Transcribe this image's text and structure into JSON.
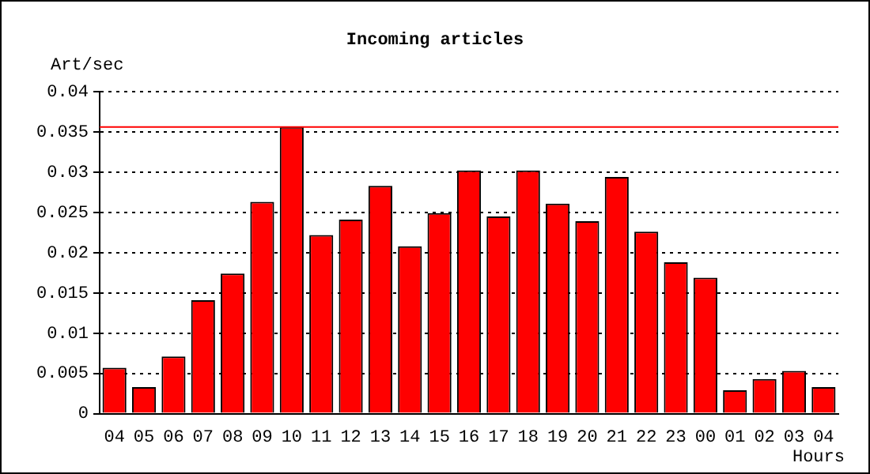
{
  "chart_data": {
    "type": "bar",
    "title": "Incoming articles",
    "xlabel": "Hours",
    "ylabel": "Art/sec",
    "categories": [
      "04",
      "05",
      "06",
      "07",
      "08",
      "09",
      "10",
      "11",
      "12",
      "13",
      "14",
      "15",
      "16",
      "17",
      "18",
      "19",
      "20",
      "21",
      "22",
      "23",
      "00",
      "01",
      "02",
      "03",
      "04"
    ],
    "values": [
      0.0057,
      0.0033,
      0.0071,
      0.0141,
      0.0174,
      0.0263,
      0.0356,
      0.0222,
      0.0241,
      0.0283,
      0.0208,
      0.0249,
      0.0302,
      0.0245,
      0.0302,
      0.0261,
      0.0239,
      0.0294,
      0.0226,
      0.0188,
      0.0169,
      0.0029,
      0.0043,
      0.0053,
      0.0033
    ],
    "color": "#ff0000",
    "ylim": [
      0,
      0.04
    ],
    "yticks": [
      0,
      0.005,
      0.01,
      0.015,
      0.02,
      0.025,
      0.03,
      0.035,
      0.04
    ],
    "grid": "y",
    "ref_lines": [
      {
        "axis": "y",
        "value": 0.0356,
        "color": "#ff0000"
      }
    ]
  }
}
